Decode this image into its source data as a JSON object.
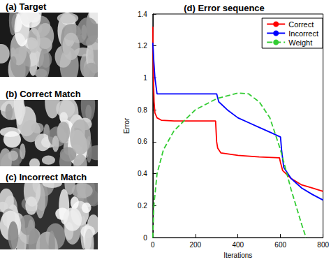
{
  "panels": [
    {
      "title": "(a) Target"
    },
    {
      "title": "(b) Correct Match"
    },
    {
      "title": "(c) Incorrect Match"
    }
  ],
  "chart_data": {
    "type": "line",
    "title": "(d) Error sequence",
    "x_label": "Iterations",
    "y_label": "Error",
    "xlim": [
      0,
      800
    ],
    "xticks": [
      0,
      200,
      400,
      600,
      800
    ],
    "ylim": [
      0,
      1.4
    ],
    "yticks": [
      0,
      0.2,
      0.4,
      0.6,
      0.8,
      1,
      1.2,
      1.4
    ],
    "grid": false,
    "legend": "upper right",
    "series": [
      {
        "name": "Correct",
        "color": "#ff0000",
        "line_style": "solid",
        "x": [
          0,
          3,
          6,
          10,
          20,
          40,
          100,
          295,
          300,
          305,
          320,
          400,
          500,
          595,
          600,
          610,
          650,
          700,
          750,
          800
        ],
        "values": [
          1.32,
          1.0,
          0.85,
          0.78,
          0.75,
          0.735,
          0.73,
          0.73,
          0.6,
          0.56,
          0.53,
          0.515,
          0.505,
          0.5,
          0.47,
          0.42,
          0.37,
          0.33,
          0.31,
          0.29
        ]
      },
      {
        "name": "Incorrect",
        "color": "#0000ff",
        "line_style": "solid",
        "x": [
          0,
          5,
          10,
          20,
          50,
          300,
          310,
          350,
          400,
          450,
          500,
          550,
          600,
          605,
          615,
          650,
          700,
          750,
          800
        ],
        "values": [
          1.22,
          1.1,
          1.0,
          0.9,
          0.9,
          0.9,
          0.85,
          0.8,
          0.75,
          0.72,
          0.69,
          0.66,
          0.63,
          0.55,
          0.44,
          0.37,
          0.31,
          0.27,
          0.235
        ]
      },
      {
        "name": "Weight",
        "color": "#33cc33",
        "line_style": "dashed",
        "x": [
          0,
          5,
          20,
          50,
          100,
          200,
          300,
          400,
          450,
          500,
          550,
          600,
          650,
          700,
          720
        ],
        "values": [
          0,
          0.2,
          0.4,
          0.55,
          0.67,
          0.8,
          0.87,
          0.905,
          0.9,
          0.85,
          0.75,
          0.55,
          0.3,
          0.08,
          0
        ]
      }
    ]
  }
}
